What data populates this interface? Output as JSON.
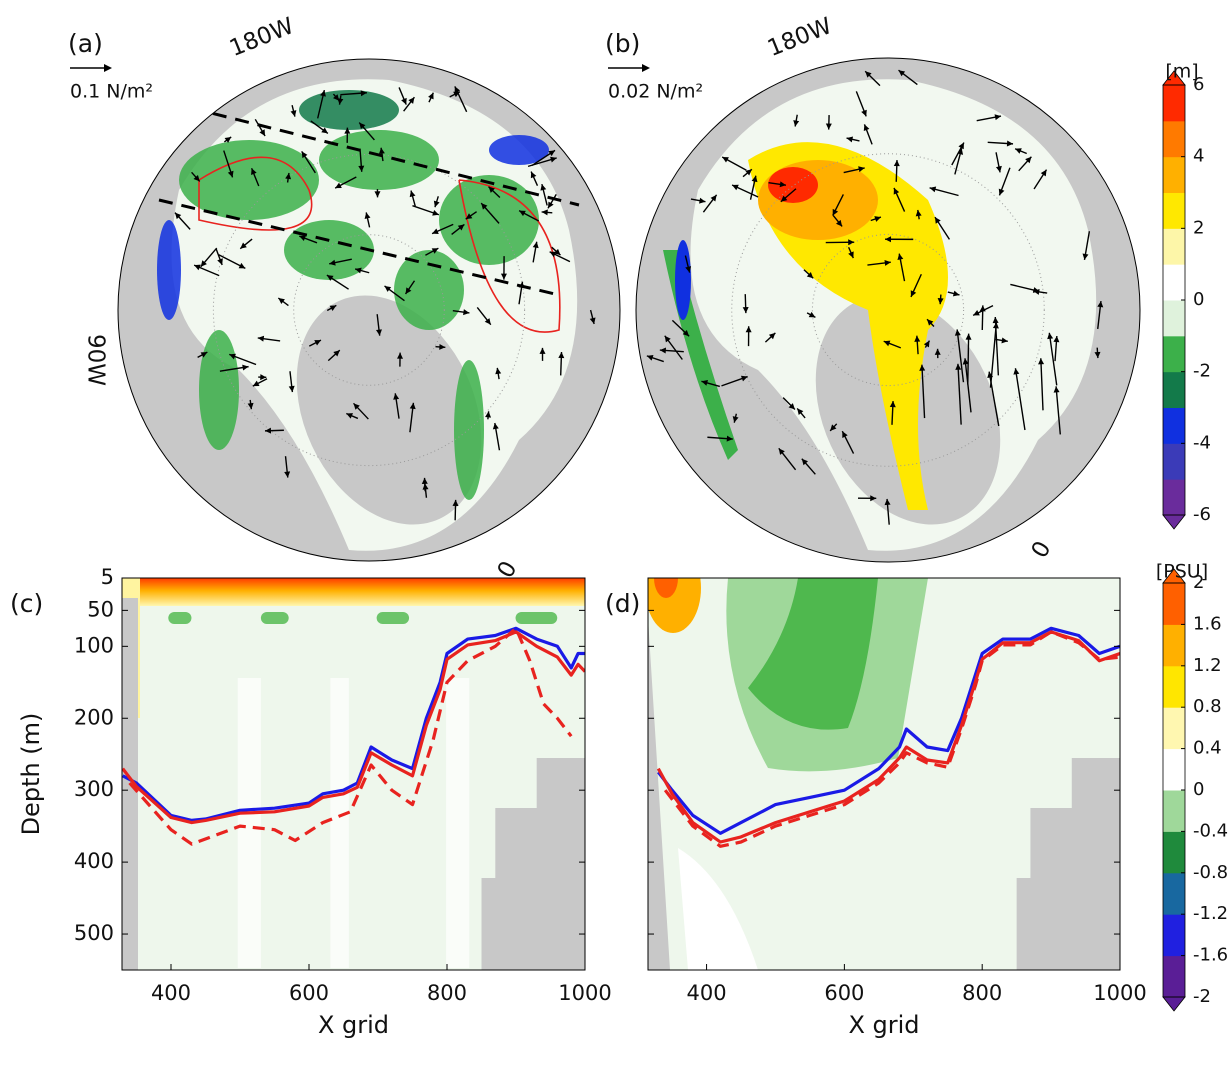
{
  "chart_data": [
    {
      "type": "map",
      "panel": "(a)",
      "scale_label": "0.1 N/m²",
      "lon_labels": [
        "180W",
        "90W",
        "0"
      ]
    },
    {
      "type": "map",
      "panel": "(b)",
      "scale_label": "0.02 N/m²",
      "lon_labels": [
        "180W",
        "0"
      ]
    },
    {
      "type": "colorbar",
      "label": "[m]",
      "lim": [
        -6,
        6
      ],
      "ticks": [
        6,
        4,
        2,
        0,
        -2,
        -4,
        -6
      ],
      "colors": [
        "#6a2c9c",
        "#3b3bb8",
        "#1030e0",
        "#137a4a",
        "#3cb04a",
        "#dff2dc",
        "#ffffff",
        "#fdf6a8",
        "#ffe800",
        "#ffb000",
        "#ff7a00",
        "#ff2a00"
      ]
    },
    {
      "type": "line",
      "panel": "(c)",
      "x_label": "X grid",
      "y_label": "Depth (m)",
      "xlim": [
        329,
        1000
      ],
      "xticks": [
        400,
        600,
        800,
        1000
      ],
      "ylim": [
        5,
        550
      ],
      "yticks": [
        5,
        50,
        100,
        200,
        300,
        400,
        500
      ],
      "y_inverted": true,
      "series": [
        {
          "color": "#1a1ae6",
          "style": "solid",
          "x": [
            330,
            350,
            400,
            430,
            450,
            500,
            550,
            600,
            620,
            650,
            670,
            690,
            720,
            750,
            770,
            790,
            800,
            830,
            870,
            900,
            930,
            960,
            980,
            990,
            1000
          ],
          "values": [
            280,
            290,
            335,
            342,
            340,
            328,
            325,
            318,
            305,
            300,
            290,
            240,
            258,
            270,
            200,
            150,
            110,
            90,
            85,
            75,
            90,
            100,
            130,
            110,
            110
          ]
        },
        {
          "color": "#e8231f",
          "style": "solid",
          "x": [
            330,
            350,
            400,
            430,
            450,
            500,
            550,
            600,
            620,
            650,
            670,
            690,
            720,
            750,
            770,
            790,
            800,
            830,
            870,
            900,
            930,
            960,
            980,
            990,
            1000
          ],
          "values": [
            270,
            295,
            338,
            345,
            342,
            332,
            330,
            322,
            310,
            305,
            296,
            248,
            265,
            280,
            210,
            160,
            118,
            98,
            92,
            80,
            100,
            115,
            140,
            125,
            135
          ]
        },
        {
          "color": "#e8231f",
          "style": "dashed",
          "x": [
            340,
            400,
            430,
            500,
            550,
            580,
            620,
            660,
            690,
            720,
            750,
            780,
            800,
            830,
            870,
            900,
            920,
            940,
            960,
            980
          ],
          "values": [
            290,
            355,
            375,
            350,
            355,
            370,
            345,
            330,
            265,
            300,
            320,
            230,
            150,
            120,
            100,
            75,
            120,
            180,
            200,
            225
          ]
        }
      ]
    },
    {
      "type": "line",
      "panel": "(d)",
      "x_label": "X grid",
      "xlim": [
        315,
        1000
      ],
      "xticks": [
        400,
        600,
        800,
        1000
      ],
      "ylim": [
        5,
        550
      ],
      "yticks": [
        5,
        50,
        100,
        200,
        300,
        400,
        500
      ],
      "y_inverted": true,
      "series": [
        {
          "color": "#1a1ae6",
          "style": "solid",
          "x": [
            330,
            350,
            380,
            420,
            450,
            500,
            550,
            600,
            650,
            680,
            690,
            720,
            750,
            770,
            790,
            800,
            830,
            870,
            900,
            940,
            970,
            1000
          ],
          "values": [
            275,
            300,
            335,
            360,
            345,
            320,
            310,
            300,
            270,
            240,
            215,
            240,
            245,
            200,
            140,
            110,
            90,
            90,
            75,
            85,
            110,
            100
          ]
        },
        {
          "color": "#e8231f",
          "style": "solid",
          "x": [
            330,
            350,
            380,
            420,
            450,
            500,
            550,
            600,
            650,
            680,
            690,
            720,
            750,
            770,
            790,
            800,
            830,
            870,
            900,
            940,
            970,
            1000
          ],
          "values": [
            270,
            305,
            345,
            372,
            365,
            345,
            330,
            315,
            285,
            255,
            240,
            258,
            262,
            210,
            150,
            118,
            95,
            95,
            80,
            92,
            120,
            110
          ]
        },
        {
          "color": "#e8231f",
          "style": "dashed",
          "x": [
            340,
            380,
            420,
            450,
            500,
            550,
            600,
            650,
            680,
            690,
            720,
            750,
            770,
            790,
            800,
            830,
            870,
            900,
            940,
            970,
            1000
          ],
          "values": [
            300,
            350,
            378,
            372,
            350,
            335,
            320,
            290,
            262,
            248,
            262,
            268,
            215,
            155,
            120,
            98,
            98,
            80,
            95,
            118,
            115
          ]
        }
      ]
    },
    {
      "type": "colorbar",
      "label": "[PSU]",
      "lim": [
        -2,
        2
      ],
      "ticks": [
        2,
        1.6,
        1.2,
        0.8,
        0.4,
        0,
        -0.4,
        -0.8,
        -1.2,
        -1.6,
        -2
      ],
      "colors": [
        "#5a1e96",
        "#2020e0",
        "#1868a0",
        "#1f8a3c",
        "#9fd89a",
        "#ffffff",
        "#fff7b0",
        "#ffe600",
        "#ffb000",
        "#ff6000"
      ]
    }
  ]
}
